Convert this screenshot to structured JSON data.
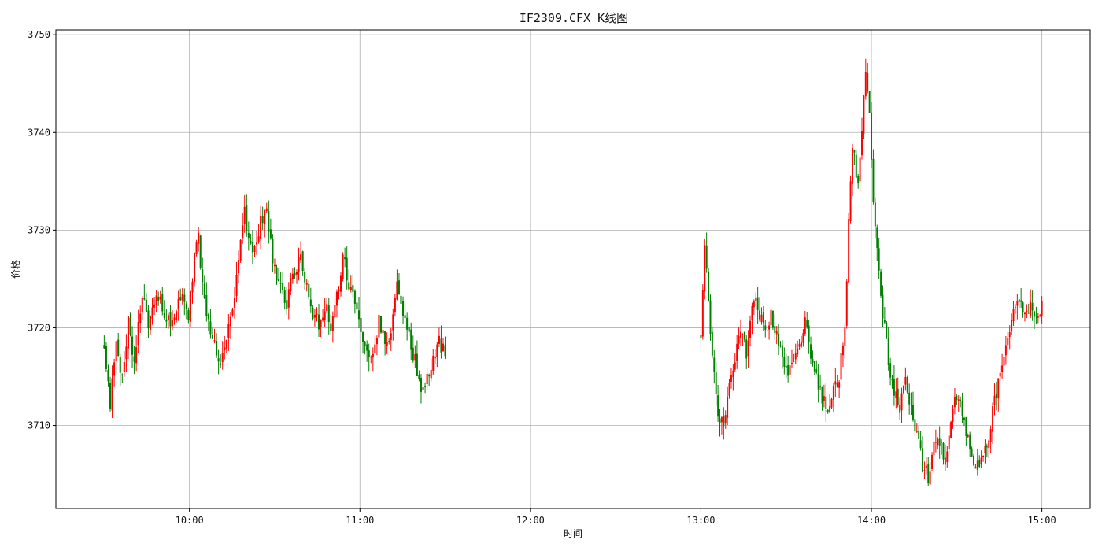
{
  "chart_data": {
    "type": "candlestick",
    "title": "IF2309.CFX K线图",
    "xlabel": "时间",
    "ylabel": "价格",
    "grid": true,
    "ylim": [
      3701.5,
      3750.5
    ],
    "xlim": [
      "09:13",
      "15:17"
    ],
    "y_ticks": [
      3710,
      3720,
      3730,
      3740,
      3750
    ],
    "x_ticks": [
      "10:00",
      "11:00",
      "12:00",
      "13:00",
      "14:00",
      "15:00"
    ],
    "up_color": "#ff0000",
    "down_color": "#008000",
    "morning": {
      "start": "09:30",
      "end": "11:30",
      "open": 3718.0,
      "anchors": [
        [
          0,
          3718.0
        ],
        [
          3,
          3712.4
        ],
        [
          6,
          3718.0
        ],
        [
          9,
          3715.0
        ],
        [
          12,
          3720.8
        ],
        [
          15,
          3716.5
        ],
        [
          19,
          3723.5
        ],
        [
          22,
          3720.2
        ],
        [
          26,
          3724.0
        ],
        [
          30,
          3721.5
        ],
        [
          34,
          3720.3
        ],
        [
          38,
          3723.5
        ],
        [
          42,
          3721.5
        ],
        [
          45,
          3727.0
        ],
        [
          47,
          3729.0
        ],
        [
          50,
          3722.5
        ],
        [
          54,
          3719.0
        ],
        [
          58,
          3716.4
        ],
        [
          63,
          3720.5
        ],
        [
          67,
          3726.5
        ],
        [
          70,
          3731.8
        ],
        [
          72,
          3729.5
        ],
        [
          75,
          3727.8
        ],
        [
          78,
          3730.8
        ],
        [
          81,
          3731.8
        ],
        [
          84,
          3727.0
        ],
        [
          87,
          3724.8
        ],
        [
          91,
          3722.6
        ],
        [
          95,
          3726.0
        ],
        [
          98,
          3727.5
        ],
        [
          101,
          3724.0
        ],
        [
          104,
          3721.5
        ],
        [
          107,
          3720.3
        ],
        [
          110,
          3722.3
        ],
        [
          113,
          3720.4
        ],
        [
          116,
          3723.0
        ],
        [
          119,
          3727.6
        ],
        [
          122,
          3724.6
        ],
        [
          125,
          3722.6
        ],
        [
          128,
          3719.5
        ],
        [
          131,
          3718.0
        ],
        [
          134,
          3717.2
        ],
        [
          137,
          3720.6
        ],
        [
          140,
          3718.3
        ],
        [
          143,
          3719.5
        ],
        [
          146,
          3724.8
        ],
        [
          149,
          3721.5
        ],
        [
          152,
          3718.8
        ],
        [
          155,
          3716.8
        ],
        [
          158,
          3713.3
        ],
        [
          161,
          3715.0
        ],
        [
          164,
          3716.6
        ],
        [
          167,
          3718.5
        ],
        [
          170,
          3717.5
        ]
      ]
    },
    "afternoon": {
      "start": "13:00",
      "end": "15:00",
      "open": 3719.0,
      "anchors": [
        [
          0,
          3719.0
        ],
        [
          2,
          3728.0
        ],
        [
          4,
          3723.5
        ],
        [
          6,
          3716.5
        ],
        [
          8,
          3713.0
        ],
        [
          10,
          3709.8
        ],
        [
          12,
          3710.5
        ],
        [
          15,
          3714.5
        ],
        [
          18,
          3717.0
        ],
        [
          21,
          3719.5
        ],
        [
          24,
          3717.5
        ],
        [
          26,
          3721.0
        ],
        [
          28,
          3723.2
        ],
        [
          31,
          3721.5
        ],
        [
          34,
          3719.0
        ],
        [
          37,
          3721.2
        ],
        [
          40,
          3719.5
        ],
        [
          43,
          3717.5
        ],
        [
          46,
          3715.0
        ],
        [
          49,
          3717.2
        ],
        [
          52,
          3718.5
        ],
        [
          55,
          3721.0
        ],
        [
          58,
          3717.0
        ],
        [
          61,
          3715.0
        ],
        [
          64,
          3713.0
        ],
        [
          67,
          3712.0
        ],
        [
          70,
          3713.5
        ],
        [
          73,
          3714.8
        ],
        [
          76,
          3720.5
        ],
        [
          78,
          3730.5
        ],
        [
          80,
          3739.0
        ],
        [
          83,
          3734.5
        ],
        [
          85,
          3740.0
        ],
        [
          87,
          3746.0
        ],
        [
          89,
          3742.0
        ],
        [
          91,
          3732.5
        ],
        [
          93,
          3727.5
        ],
        [
          95,
          3723.5
        ],
        [
          97,
          3720.0
        ],
        [
          99,
          3716.5
        ],
        [
          102,
          3713.5
        ],
        [
          105,
          3712.0
        ],
        [
          108,
          3714.3
        ],
        [
          111,
          3711.5
        ],
        [
          114,
          3709.5
        ],
        [
          117,
          3706.0
        ],
        [
          120,
          3704.8
        ],
        [
          123,
          3707.5
        ],
        [
          126,
          3708.5
        ],
        [
          129,
          3706.5
        ],
        [
          132,
          3710.5
        ],
        [
          135,
          3713.0
        ],
        [
          138,
          3711.5
        ],
        [
          141,
          3708.5
        ],
        [
          144,
          3706.0
        ],
        [
          147,
          3706.5
        ],
        [
          150,
          3707.5
        ],
        [
          153,
          3710.0
        ],
        [
          156,
          3713.5
        ],
        [
          159,
          3715.5
        ],
        [
          162,
          3718.5
        ],
        [
          165,
          3722.0
        ],
        [
          168,
          3722.5
        ],
        [
          171,
          3721.0
        ],
        [
          174,
          3722.5
        ],
        [
          177,
          3721.5
        ],
        [
          180,
          3722.2
        ]
      ]
    }
  }
}
